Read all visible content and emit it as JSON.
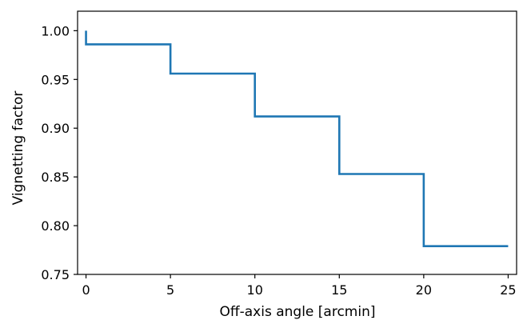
{
  "chart_data": {
    "type": "line",
    "step": true,
    "xlabel": "Off-axis angle [arcmin]",
    "ylabel": "Vignetting factor",
    "xlim": [
      -0.5,
      25.5
    ],
    "ylim": [
      0.75,
      1.02
    ],
    "xticks": [
      0,
      5,
      10,
      15,
      20,
      25
    ],
    "xtick_labels": [
      "0",
      "5",
      "10",
      "15",
      "20",
      "25"
    ],
    "yticks": [
      0.75,
      0.8,
      0.85,
      0.9,
      0.95,
      1.0
    ],
    "ytick_labels": [
      "0.75",
      "0.80",
      "0.85",
      "0.90",
      "0.95",
      "1.00"
    ],
    "grid": false,
    "series": [
      {
        "color": "#1f77b4",
        "x": [
          0,
          0,
          5,
          5,
          10,
          10,
          15,
          15,
          20,
          20,
          25
        ],
        "y": [
          1.0,
          0.986,
          0.986,
          0.956,
          0.956,
          0.912,
          0.912,
          0.853,
          0.853,
          0.779,
          0.779
        ]
      }
    ]
  }
}
